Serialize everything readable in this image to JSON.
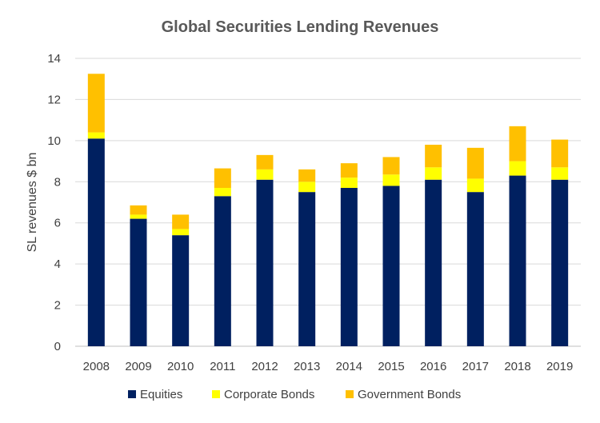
{
  "chart_data": {
    "type": "bar",
    "stacked": true,
    "title": "Global Securities Lending Revenues",
    "xlabel": "",
    "ylabel": "SL revenues $ bn",
    "ylim": [
      0,
      14
    ],
    "yticks": [
      0,
      2,
      4,
      6,
      8,
      10,
      12,
      14
    ],
    "grid": true,
    "legend_position": "bottom",
    "categories": [
      "2008",
      "2009",
      "2010",
      "2011",
      "2012",
      "2013",
      "2014",
      "2015",
      "2016",
      "2017",
      "2018",
      "2019"
    ],
    "series": [
      {
        "name": "Equities",
        "color": "#002060",
        "values": [
          10.1,
          6.2,
          5.4,
          7.3,
          8.1,
          7.5,
          7.7,
          7.8,
          8.1,
          7.5,
          8.3,
          8.1
        ]
      },
      {
        "name": "Corporate Bonds",
        "color": "#ffff00",
        "values": [
          0.3,
          0.2,
          0.3,
          0.4,
          0.5,
          0.5,
          0.5,
          0.55,
          0.6,
          0.65,
          0.7,
          0.6
        ]
      },
      {
        "name": "Government Bonds",
        "color": "#ffc000",
        "values": [
          2.85,
          0.45,
          0.7,
          0.95,
          0.7,
          0.6,
          0.7,
          0.85,
          1.1,
          1.5,
          1.7,
          1.35
        ]
      }
    ]
  }
}
